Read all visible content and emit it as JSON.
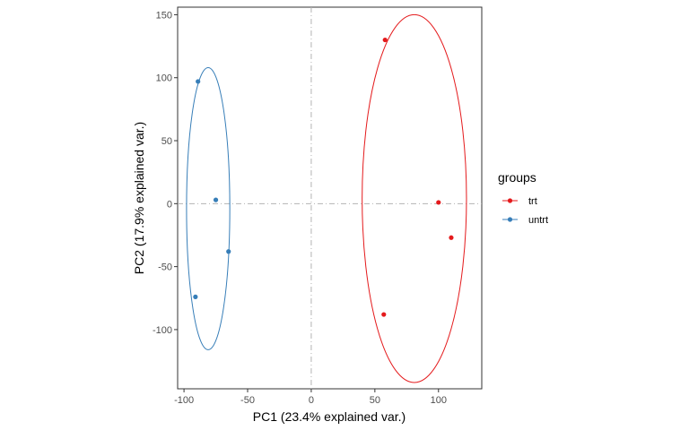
{
  "chart_data": {
    "type": "scatter",
    "title": "",
    "xlabel": "PC1 (23.4% explained var.)",
    "ylabel": "PC2 (17.9% explained var.)",
    "xlim": [
      -105,
      134
    ],
    "ylim": [
      -147,
      156
    ],
    "xticks": [
      -100,
      -50,
      0,
      50,
      100
    ],
    "yticks": [
      -100,
      -50,
      0,
      50,
      100,
      150
    ],
    "xtick_labels": [
      "-100",
      "-50",
      "0",
      "50",
      "100"
    ],
    "ytick_labels": [
      "-100",
      "-50",
      "0",
      "50",
      "100",
      "150"
    ],
    "grid": false,
    "reference_lines": {
      "x": 0,
      "y": 0,
      "style": "dashed"
    },
    "legend": {
      "title": "groups",
      "position": "right"
    },
    "series": [
      {
        "name": "trt",
        "color": "#e41a1c",
        "points": [
          {
            "x": 58,
            "y": 130
          },
          {
            "x": 100,
            "y": 1
          },
          {
            "x": 110,
            "y": -27
          },
          {
            "x": 57,
            "y": -88
          }
        ],
        "ellipse": {
          "cx": 81,
          "cy": 4,
          "rx": 41,
          "ry": 146,
          "angle": 0
        }
      },
      {
        "name": "untrt",
        "color": "#377eb8",
        "points": [
          {
            "x": -89,
            "y": 97
          },
          {
            "x": -75,
            "y": 3
          },
          {
            "x": -65,
            "y": -38
          },
          {
            "x": -91,
            "y": -74
          }
        ],
        "ellipse": {
          "cx": -81,
          "cy": -4,
          "rx": 17,
          "ry": 112,
          "angle": 0
        }
      }
    ]
  }
}
